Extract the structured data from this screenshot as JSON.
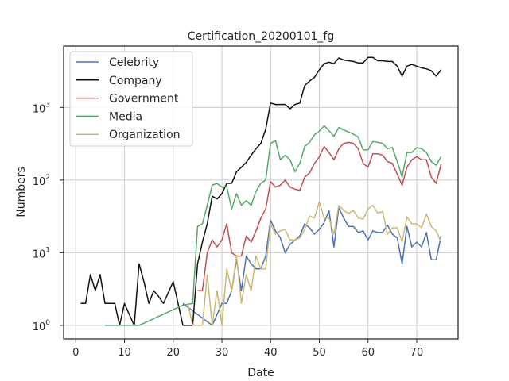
{
  "chart_data": {
    "type": "line",
    "title": "Certification_20200101_fg",
    "xlabel": "Date",
    "ylabel": "Numbers",
    "xlim": [
      -2.5,
      78.5
    ],
    "ylim": [
      0.65,
      7000
    ],
    "yscale": "log",
    "xticks": [
      0,
      10,
      20,
      30,
      40,
      50,
      60,
      70
    ],
    "yticks": [
      {
        "value": 1,
        "base": "10",
        "exp": "0"
      },
      {
        "value": 10,
        "base": "10",
        "exp": "1"
      },
      {
        "value": 100,
        "base": "10",
        "exp": "2"
      },
      {
        "value": 1000,
        "base": "10",
        "exp": "3"
      }
    ],
    "grid": true,
    "legend_position": "upper-left",
    "series": [
      {
        "name": "Celebrity",
        "color": "#4c72b0",
        "points": [
          [
            22,
            2
          ],
          [
            28,
            1
          ],
          [
            30,
            2
          ],
          [
            31,
            2
          ],
          [
            32,
            3
          ],
          [
            33,
            8
          ],
          [
            34,
            3
          ],
          [
            35,
            9
          ],
          [
            36,
            7
          ],
          [
            37,
            6
          ],
          [
            38,
            6
          ],
          [
            39,
            9
          ],
          [
            40,
            28
          ],
          [
            41,
            20
          ],
          [
            42,
            16
          ],
          [
            43,
            10
          ],
          [
            44,
            13
          ],
          [
            45,
            15
          ],
          [
            46,
            17
          ],
          [
            47,
            25
          ],
          [
            48,
            22
          ],
          [
            49,
            18
          ],
          [
            50,
            21
          ],
          [
            51,
            26
          ],
          [
            52,
            38
          ],
          [
            53,
            12
          ],
          [
            54,
            42
          ],
          [
            55,
            30
          ],
          [
            56,
            23
          ],
          [
            57,
            23
          ],
          [
            58,
            19
          ],
          [
            59,
            20
          ],
          [
            60,
            15
          ],
          [
            61,
            20
          ],
          [
            62,
            19
          ],
          [
            63,
            19
          ],
          [
            64,
            24
          ],
          [
            65,
            18
          ],
          [
            66,
            16
          ],
          [
            67,
            7
          ],
          [
            68,
            23
          ],
          [
            69,
            12
          ],
          [
            70,
            14
          ],
          [
            71,
            12
          ],
          [
            72,
            19
          ],
          [
            73,
            8
          ],
          [
            74,
            8
          ],
          [
            75,
            17
          ]
        ]
      },
      {
        "name": "Company",
        "color": "#111111",
        "points": [
          [
            1,
            2
          ],
          [
            2,
            2
          ],
          [
            3,
            5
          ],
          [
            4,
            3
          ],
          [
            5,
            5
          ],
          [
            6,
            2
          ],
          [
            7,
            2
          ],
          [
            8,
            2
          ],
          [
            9,
            1
          ],
          [
            10,
            2
          ],
          [
            11,
            1.4
          ],
          [
            12,
            1
          ],
          [
            13,
            7
          ],
          [
            14,
            4
          ],
          [
            15,
            2
          ],
          [
            16,
            3
          ],
          [
            17,
            2.5
          ],
          [
            18,
            2
          ],
          [
            20,
            4
          ],
          [
            21,
            2
          ],
          [
            22,
            1
          ],
          [
            23,
            1
          ],
          [
            24,
            1
          ],
          [
            25,
            7
          ],
          [
            26,
            14
          ],
          [
            27,
            25
          ],
          [
            28,
            60
          ],
          [
            29,
            55
          ],
          [
            30,
            65
          ],
          [
            31,
            90
          ],
          [
            32,
            90
          ],
          [
            33,
            130
          ],
          [
            34,
            150
          ],
          [
            35,
            175
          ],
          [
            36,
            220
          ],
          [
            37,
            270
          ],
          [
            38,
            320
          ],
          [
            39,
            500
          ],
          [
            40,
            1150
          ],
          [
            41,
            1100
          ],
          [
            42,
            1100
          ],
          [
            43,
            1100
          ],
          [
            44,
            960
          ],
          [
            45,
            1100
          ],
          [
            46,
            1150
          ],
          [
            47,
            2000
          ],
          [
            48,
            2300
          ],
          [
            49,
            2600
          ],
          [
            50,
            3300
          ],
          [
            51,
            4000
          ],
          [
            52,
            4200
          ],
          [
            53,
            4000
          ],
          [
            54,
            4800
          ],
          [
            55,
            4500
          ],
          [
            56,
            4400
          ],
          [
            57,
            4300
          ],
          [
            58,
            4100
          ],
          [
            59,
            4100
          ],
          [
            60,
            4900
          ],
          [
            61,
            4900
          ],
          [
            62,
            4400
          ],
          [
            63,
            4400
          ],
          [
            64,
            4300
          ],
          [
            65,
            4300
          ],
          [
            66,
            3700
          ],
          [
            67,
            2700
          ],
          [
            68,
            3700
          ],
          [
            69,
            3900
          ],
          [
            70,
            3700
          ],
          [
            71,
            3500
          ],
          [
            72,
            3400
          ],
          [
            73,
            3200
          ],
          [
            74,
            2700
          ],
          [
            75,
            3300
          ]
        ]
      },
      {
        "name": "Government",
        "color": "#c44e52",
        "points": [
          [
            25,
            3
          ],
          [
            26,
            3
          ],
          [
            27,
            10
          ],
          [
            28,
            15
          ],
          [
            29,
            12
          ],
          [
            30,
            15
          ],
          [
            31,
            25
          ],
          [
            32,
            10
          ],
          [
            33,
            9
          ],
          [
            34,
            9
          ],
          [
            35,
            17
          ],
          [
            36,
            14
          ],
          [
            37,
            20
          ],
          [
            38,
            30
          ],
          [
            39,
            40
          ],
          [
            40,
            95
          ],
          [
            41,
            80
          ],
          [
            42,
            85
          ],
          [
            43,
            100
          ],
          [
            44,
            80
          ],
          [
            45,
            75
          ],
          [
            46,
            72
          ],
          [
            47,
            110
          ],
          [
            48,
            125
          ],
          [
            49,
            170
          ],
          [
            50,
            210
          ],
          [
            51,
            290
          ],
          [
            52,
            240
          ],
          [
            53,
            190
          ],
          [
            54,
            270
          ],
          [
            55,
            320
          ],
          [
            56,
            330
          ],
          [
            57,
            320
          ],
          [
            58,
            270
          ],
          [
            59,
            170
          ],
          [
            60,
            150
          ],
          [
            61,
            230
          ],
          [
            62,
            230
          ],
          [
            63,
            220
          ],
          [
            64,
            180
          ],
          [
            65,
            170
          ],
          [
            66,
            120
          ],
          [
            67,
            85
          ],
          [
            68,
            150
          ],
          [
            69,
            190
          ],
          [
            70,
            210
          ],
          [
            71,
            190
          ],
          [
            72,
            190
          ],
          [
            73,
            110
          ],
          [
            74,
            90
          ],
          [
            75,
            165
          ]
        ]
      },
      {
        "name": "Media",
        "color": "#55a868",
        "points": [
          [
            6,
            1
          ],
          [
            7,
            1
          ],
          [
            8,
            1
          ],
          [
            9,
            1
          ],
          [
            10,
            1
          ],
          [
            11,
            1
          ],
          [
            12,
            1
          ],
          [
            13,
            1
          ],
          [
            22,
            1.9
          ],
          [
            24,
            2
          ],
          [
            25,
            23
          ],
          [
            26,
            25
          ],
          [
            27,
            45
          ],
          [
            28,
            85
          ],
          [
            29,
            90
          ],
          [
            30,
            80
          ],
          [
            31,
            82
          ],
          [
            32,
            40
          ],
          [
            33,
            65
          ],
          [
            34,
            45
          ],
          [
            35,
            52
          ],
          [
            36,
            45
          ],
          [
            37,
            70
          ],
          [
            38,
            90
          ],
          [
            39,
            100
          ],
          [
            40,
            320
          ],
          [
            41,
            350
          ],
          [
            42,
            190
          ],
          [
            43,
            220
          ],
          [
            44,
            190
          ],
          [
            45,
            130
          ],
          [
            46,
            170
          ],
          [
            47,
            290
          ],
          [
            48,
            330
          ],
          [
            49,
            420
          ],
          [
            50,
            470
          ],
          [
            51,
            560
          ],
          [
            52,
            480
          ],
          [
            53,
            400
          ],
          [
            54,
            530
          ],
          [
            55,
            490
          ],
          [
            56,
            460
          ],
          [
            57,
            430
          ],
          [
            58,
            390
          ],
          [
            59,
            260
          ],
          [
            60,
            260
          ],
          [
            61,
            340
          ],
          [
            62,
            330
          ],
          [
            63,
            320
          ],
          [
            64,
            270
          ],
          [
            65,
            280
          ],
          [
            66,
            180
          ],
          [
            67,
            110
          ],
          [
            68,
            240
          ],
          [
            69,
            240
          ],
          [
            70,
            280
          ],
          [
            71,
            270
          ],
          [
            72,
            240
          ],
          [
            73,
            180
          ],
          [
            74,
            160
          ],
          [
            75,
            210
          ]
        ]
      },
      {
        "name": "Organization",
        "color": "#ccb974",
        "points": [
          [
            23,
            2
          ],
          [
            24,
            1
          ],
          [
            26,
            1
          ],
          [
            27,
            5
          ],
          [
            28,
            1
          ],
          [
            29,
            3
          ],
          [
            30,
            1
          ],
          [
            31,
            6
          ],
          [
            32,
            3
          ],
          [
            33,
            9
          ],
          [
            34,
            2
          ],
          [
            35,
            5
          ],
          [
            36,
            3
          ],
          [
            37,
            9
          ],
          [
            38,
            6
          ],
          [
            39,
            6
          ],
          [
            40,
            25
          ],
          [
            41,
            18
          ],
          [
            42,
            20
          ],
          [
            43,
            21
          ],
          [
            44,
            15
          ],
          [
            45,
            15
          ],
          [
            46,
            16
          ],
          [
            47,
            21
          ],
          [
            48,
            32
          ],
          [
            49,
            30
          ],
          [
            50,
            50
          ],
          [
            51,
            30
          ],
          [
            52,
            30
          ],
          [
            53,
            18
          ],
          [
            54,
            45
          ],
          [
            55,
            38
          ],
          [
            56,
            35
          ],
          [
            57,
            38
          ],
          [
            58,
            30
          ],
          [
            59,
            29
          ],
          [
            60,
            40
          ],
          [
            61,
            45
          ],
          [
            62,
            35
          ],
          [
            63,
            37
          ],
          [
            64,
            18
          ],
          [
            65,
            22
          ],
          [
            66,
            22
          ],
          [
            67,
            14
          ],
          [
            68,
            31
          ],
          [
            69,
            25
          ],
          [
            70,
            25
          ],
          [
            71,
            22
          ],
          [
            72,
            34
          ],
          [
            73,
            23
          ],
          [
            74,
            20
          ],
          [
            75,
            14
          ]
        ]
      }
    ]
  }
}
